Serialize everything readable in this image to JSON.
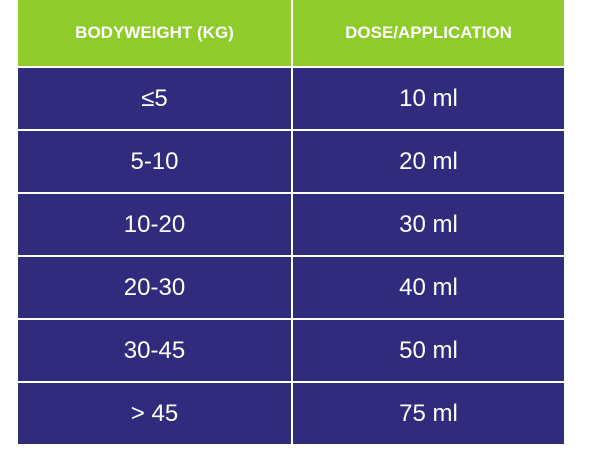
{
  "colors": {
    "header_bg": "#8fcc2a",
    "body_bg": "#302c7d",
    "text": "#ffffff",
    "gridline": "#ffffff"
  },
  "table": {
    "headers": [
      "BODYWEIGHT (KG)",
      "DOSE/APPLICATION"
    ],
    "rows": [
      [
        "≤5",
        "10 ml"
      ],
      [
        "5-10",
        "20 ml"
      ],
      [
        "10-20",
        "30 ml"
      ],
      [
        "20-30",
        "40 ml"
      ],
      [
        "30-45",
        "50 ml"
      ],
      [
        "> 45",
        "75 ml"
      ]
    ]
  }
}
